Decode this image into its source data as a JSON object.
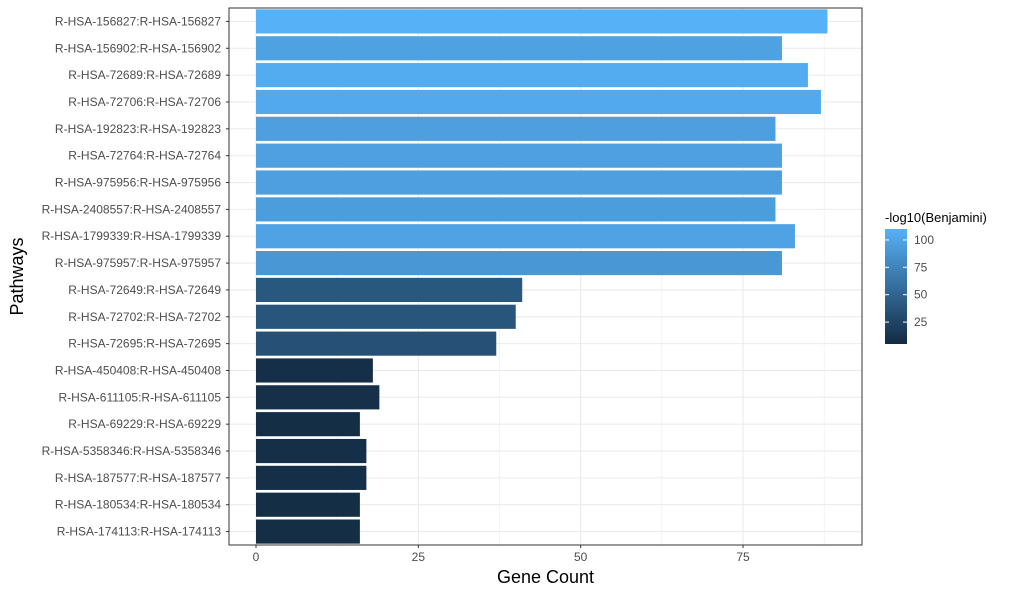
{
  "chart_data": {
    "type": "bar",
    "orientation": "horizontal",
    "xlabel": "Gene Count",
    "ylabel": "Pathways",
    "xlim": [
      0,
      91
    ],
    "x_ticks": [
      0,
      25,
      50,
      75
    ],
    "grid": true,
    "legend_position": "right",
    "categories": [
      "R-HSA-156827:R-HSA-156827",
      "R-HSA-156902:R-HSA-156902",
      "R-HSA-72689:R-HSA-72689",
      "R-HSA-72706:R-HSA-72706",
      "R-HSA-192823:R-HSA-192823",
      "R-HSA-72764:R-HSA-72764",
      "R-HSA-975956:R-HSA-975956",
      "R-HSA-2408557:R-HSA-2408557",
      "R-HSA-1799339:R-HSA-1799339",
      "R-HSA-975957:R-HSA-975957",
      "R-HSA-72649:R-HSA-72649",
      "R-HSA-72702:R-HSA-72702",
      "R-HSA-72695:R-HSA-72695",
      "R-HSA-450408:R-HSA-450408",
      "R-HSA-611105:R-HSA-611105",
      "R-HSA-69229:R-HSA-69229",
      "R-HSA-5358346:R-HSA-5358346",
      "R-HSA-187577:R-HSA-187577",
      "R-HSA-180534:R-HSA-180534",
      "R-HSA-174113:R-HSA-174113"
    ],
    "values": [
      88,
      81,
      85,
      87,
      80,
      81,
      81,
      80,
      83,
      81,
      41,
      40,
      37,
      18,
      19,
      16,
      17,
      17,
      16,
      16
    ],
    "color_values": [
      110,
      98,
      106,
      104,
      96,
      97,
      96,
      94,
      99,
      90,
      40,
      38,
      34,
      8,
      9,
      7,
      8,
      8,
      7,
      7
    ],
    "legend": {
      "title": "-log10(Benjamini)",
      "range": [
        5,
        110
      ],
      "ticks": [
        100,
        75,
        50,
        25
      ],
      "color_low": "#132B43",
      "color_high": "#56B1F7"
    },
    "colors": {
      "panel_border": "#333333",
      "grid": "#ebebeb",
      "tick": "#333333"
    }
  }
}
